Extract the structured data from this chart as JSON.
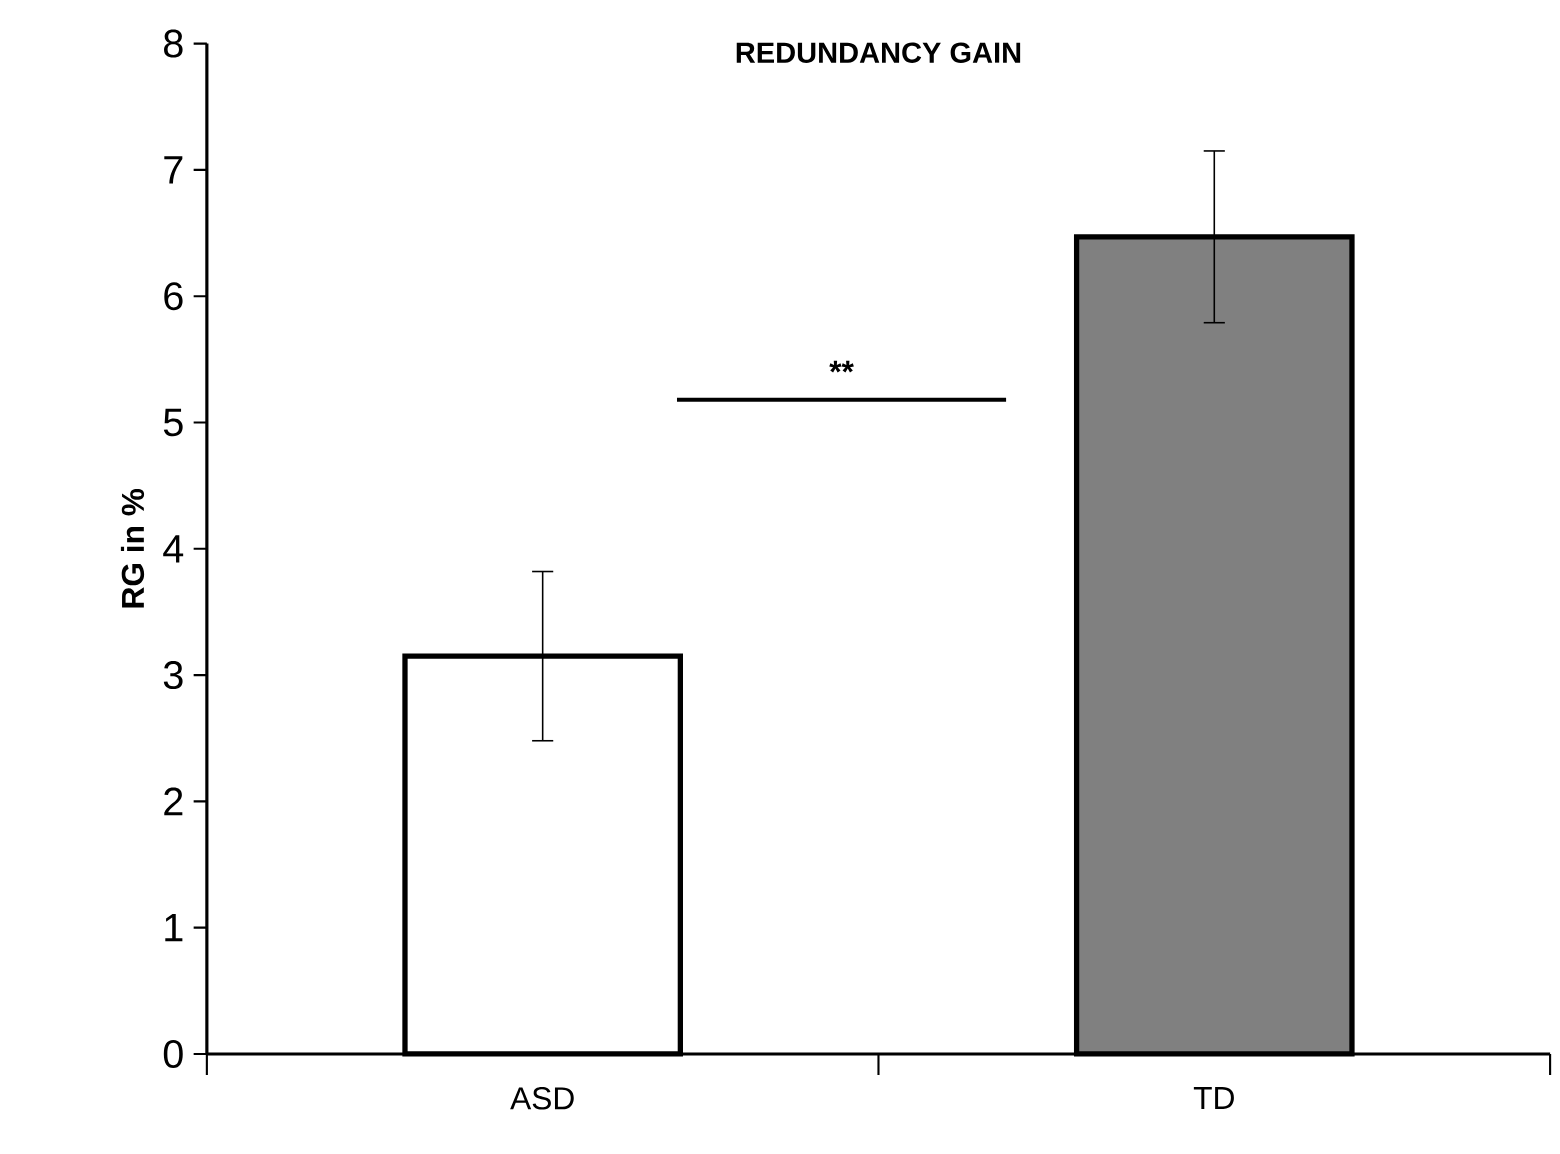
{
  "chart_data": {
    "type": "bar",
    "title": "REDUNDANCY GAIN",
    "ylabel": "RG in %",
    "categories": [
      "ASD",
      "TD"
    ],
    "values": [
      3.15,
      6.47
    ],
    "colors": [
      "#ffffff",
      "#808080"
    ],
    "errors": [
      0.67,
      0.68
    ],
    "ylim": [
      0,
      8
    ],
    "yticks": [
      0,
      1,
      2,
      3,
      4,
      5,
      6,
      7,
      8
    ],
    "annotations": [
      "**"
    ]
  }
}
